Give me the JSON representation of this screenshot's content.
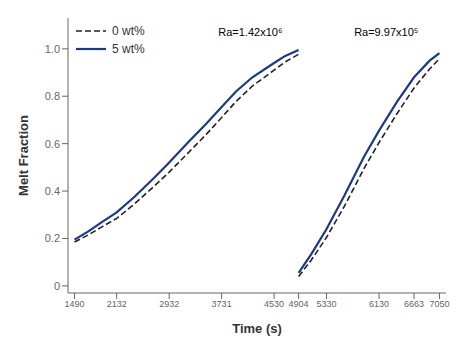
{
  "chart_data": {
    "type": "line",
    "xlabel": "Time (s)",
    "ylabel": "Melt Fraction",
    "xlim": [
      1390,
      7150
    ],
    "ylim": [
      -0.03,
      1.13
    ],
    "xticks": [
      1490,
      2132,
      2932,
      3731,
      4530,
      4904,
      5330,
      6130,
      6663,
      7050
    ],
    "yticks": [
      0,
      0.2,
      0.4,
      0.6,
      0.8,
      {
        "value": 1.0,
        "label": "1.0"
      }
    ],
    "legend": "upper left",
    "grid": false,
    "annotations": [
      {
        "text": "Ra=1.42x10⁶",
        "x": 3680,
        "y": 1.07
      },
      {
        "text": "Ra=9.97x10⁵",
        "x": 5750,
        "y": 1.07
      }
    ],
    "series": [
      {
        "name": "0 wt%",
        "color": "#222222",
        "line_style": "dashed",
        "x": [
          1490,
          1700,
          1900,
          2132,
          2400,
          2700,
          2932,
          3200,
          3500,
          3731,
          3950,
          4200,
          4530,
          4700,
          4904
        ],
        "values": [
          0.185,
          0.215,
          0.248,
          0.285,
          0.345,
          0.42,
          0.48,
          0.555,
          0.64,
          0.71,
          0.778,
          0.843,
          0.91,
          0.945,
          0.977
        ]
      },
      {
        "name": "5 wt%",
        "color": "#1b3a82",
        "line_style": "solid",
        "x": [
          1490,
          1700,
          1900,
          2132,
          2400,
          2700,
          2932,
          3200,
          3500,
          3731,
          3950,
          4200,
          4530,
          4700,
          4904
        ],
        "values": [
          0.195,
          0.23,
          0.268,
          0.31,
          0.375,
          0.455,
          0.52,
          0.6,
          0.685,
          0.755,
          0.82,
          0.88,
          0.94,
          0.97,
          0.995
        ]
      },
      {
        "name": "0 wt%",
        "color": "#222222",
        "line_style": "dashed",
        "x": [
          4904,
          5100,
          5330,
          5600,
          5900,
          6130,
          6400,
          6663,
          6900,
          7050
        ],
        "values": [
          0.04,
          0.11,
          0.205,
          0.335,
          0.495,
          0.605,
          0.725,
          0.835,
          0.915,
          0.958
        ]
      },
      {
        "name": "5 wt%",
        "color": "#1b3a82",
        "line_style": "solid",
        "x": [
          4904,
          5100,
          5330,
          5600,
          5900,
          6130,
          6400,
          6663,
          6900,
          7050
        ],
        "values": [
          0.055,
          0.135,
          0.24,
          0.38,
          0.545,
          0.655,
          0.775,
          0.88,
          0.95,
          0.982
        ]
      }
    ]
  }
}
